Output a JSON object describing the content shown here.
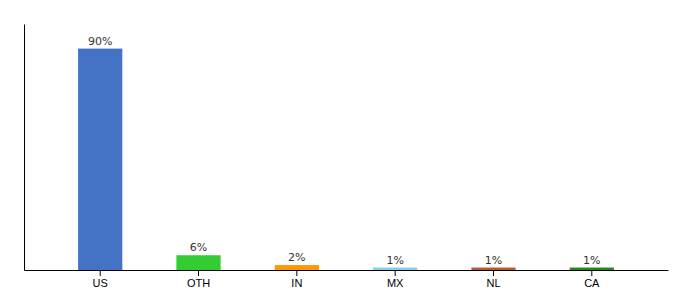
{
  "chart_data": {
    "type": "bar",
    "categories": [
      "US",
      "OTH",
      "IN",
      "MX",
      "NL",
      "CA"
    ],
    "values": [
      90,
      6,
      2,
      1,
      1,
      1
    ],
    "value_labels": [
      "90%",
      "6%",
      "2%",
      "1%",
      "1%",
      "1%"
    ],
    "colors": [
      "#4472c4",
      "#33cc33",
      "#ff9900",
      "#88ccee",
      "#b85c2a",
      "#228822"
    ],
    "ylim": [
      0,
      100
    ],
    "data_labels": true,
    "tick_labels": "x",
    "grid": false
  }
}
